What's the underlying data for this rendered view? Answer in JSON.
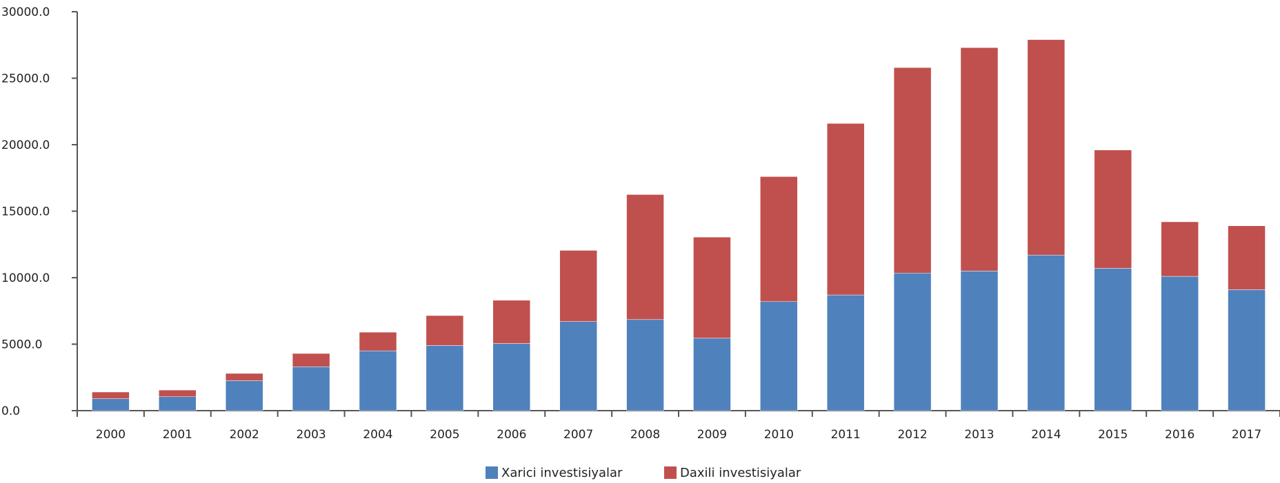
{
  "chart_data": {
    "type": "bar",
    "stacked": true,
    "categories": [
      "2000",
      "2001",
      "2002",
      "2003",
      "2004",
      "2005",
      "2006",
      "2007",
      "2008",
      "2009",
      "2010",
      "2011",
      "2012",
      "2013",
      "2014",
      "2015",
      "2016",
      "2017"
    ],
    "series": [
      {
        "name": "Xarici investisiyalar",
        "color": "#4f81bd",
        "values": [
          900,
          1050,
          2250,
          3300,
          4500,
          4900,
          5050,
          6700,
          6850,
          5450,
          8200,
          8700,
          10350,
          10500,
          11700,
          10700,
          10100,
          9100
        ]
      },
      {
        "name": "Daxili investisiyalar",
        "color": "#c0504d",
        "values": [
          500,
          500,
          550,
          1000,
          1400,
          2250,
          3250,
          5350,
          9400,
          7600,
          9400,
          12900,
          15450,
          16800,
          16200,
          8900,
          4100,
          4800
        ]
      }
    ],
    "ylim": [
      0,
      30000
    ],
    "yticks": [
      "0.0",
      "5000.0",
      "10000.0",
      "15000.0",
      "20000.0",
      "25000.0",
      "30000.0"
    ],
    "ytick_values": [
      0,
      5000,
      10000,
      15000,
      20000,
      25000,
      30000
    ],
    "legend": "bottom-center",
    "grid": false
  }
}
